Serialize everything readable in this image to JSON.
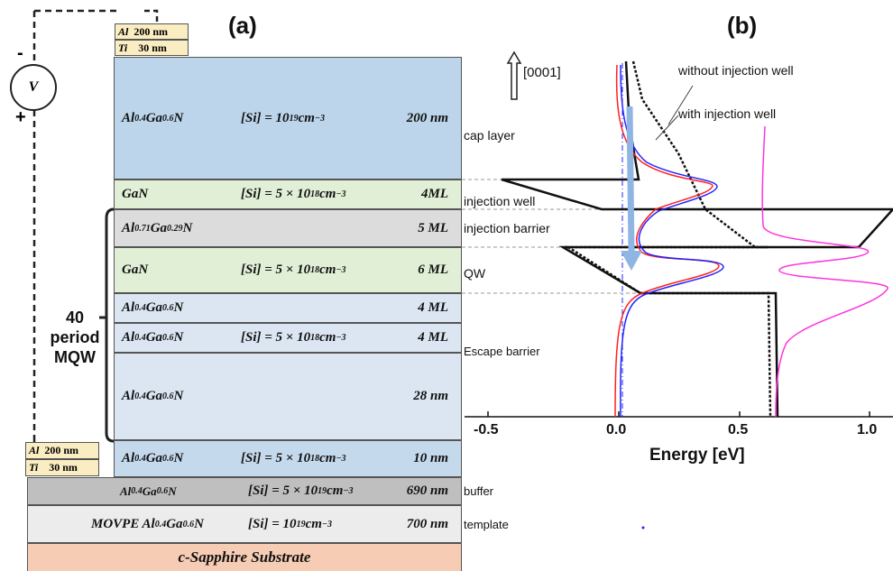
{
  "panels": {
    "a": "(a)",
    "b": "(b)"
  },
  "voltmeter": {
    "symbol": "V",
    "minus": "-",
    "plus": "+"
  },
  "top_contact": {
    "al": "Al",
    "al_thick": "200 nm",
    "ti": "Ti",
    "ti_thick": "30 nm"
  },
  "bottom_contact": {
    "al": "Al",
    "al_thick": "200 nm",
    "ti": "Ti",
    "ti_thick": "30 nm"
  },
  "mqw_label": {
    "count": "40",
    "line1": "period",
    "line2": "MQW"
  },
  "layers": {
    "cap": {
      "name_a": "Al",
      "sub1": "0.4",
      "name_b": "Ga",
      "sub2": "0.6",
      "name_c": "N",
      "conc_pre": "[Si] = 10",
      "conc_exp": "19",
      "conc_unit": " cm",
      "conc_unit_exp": "−3",
      "thickness": "200 nm"
    },
    "injwell": {
      "name": "GaN",
      "conc_pre": "[Si] = 5 × 10",
      "conc_exp": "18",
      "conc_unit": " cm",
      "conc_unit_exp": "−3",
      "thickness": "4ML"
    },
    "injbarrier": {
      "name_a": "Al",
      "sub1": "0.71",
      "name_b": "Ga",
      "sub2": "0.29",
      "name_c": "N",
      "thickness": "5 ML"
    },
    "qw": {
      "name": "GaN",
      "conc_pre": "[Si] = 5 × 10",
      "conc_exp": "18",
      "conc_unit": " cm",
      "conc_unit_exp": "−3",
      "thickness": "6 ML"
    },
    "esc1": {
      "name_a": "Al",
      "sub1": "0.4",
      "name_b": "Ga",
      "sub2": "0.6",
      "name_c": "N",
      "thickness": "4 ML"
    },
    "esc2": {
      "name_a": "Al",
      "sub1": "0.4",
      "name_b": "Ga",
      "sub2": "0.6",
      "name_c": "N",
      "conc_pre": "[Si] = 5 × 10",
      "conc_exp": "18",
      "conc_unit": " cm",
      "conc_unit_exp": "−3",
      "thickness": "4 ML"
    },
    "esc3": {
      "name_a": "Al",
      "sub1": "0.4",
      "name_b": "Ga",
      "sub2": "0.6",
      "name_c": "N",
      "thickness": "28 nm"
    },
    "contact": {
      "name_a": "Al",
      "sub1": "0.4",
      "name_b": "Ga",
      "sub2": "0.6",
      "name_c": "N",
      "conc_pre": "[Si] = 5 × 10",
      "conc_exp": "18",
      "conc_unit": " cm",
      "conc_unit_exp": "−3",
      "thickness": "10 nm"
    },
    "buffer": {
      "name_a": "Al",
      "sub1": "0.4",
      "name_b": "Ga",
      "sub2": "0.6",
      "name_c": "N",
      "conc_pre": "[Si] = 5 × 10",
      "conc_exp": "19",
      "conc_unit": " cm",
      "conc_unit_exp": "−3",
      "thickness": "690 nm"
    },
    "template": {
      "name_pre": "MOVPE Al",
      "sub1": "0.4",
      "name_b": "Ga",
      "sub2": "0.6",
      "name_c": "N",
      "conc_pre": "[Si] = 10",
      "conc_exp": "19",
      "conc_unit": " cm",
      "conc_unit_exp": "−3",
      "thickness": "700 nm"
    },
    "substrate": {
      "name": "c-Sapphire Substrate"
    }
  },
  "region_labels": {
    "cap": "cap layer",
    "injwell": "injection well",
    "injbarrier": "injection barrier",
    "qw": "QW",
    "escape": "Escape barrier",
    "buffer": "buffer",
    "template": "template"
  },
  "direction": "[0001]",
  "legend": {
    "without": "without injection well",
    "with": "with injection well"
  },
  "colors": {
    "cap": "#bcd5ea",
    "green": "#e0efd6",
    "barrier": "#dcdcdc",
    "escape": "#dbe6f2",
    "contact": "#c5d9ec",
    "buffer": "#bfbfbf",
    "template": "#ececec",
    "substrate": "#f6ccb4",
    "with": "#2323ff",
    "without": "#ff2020",
    "pink": "#ff33dd",
    "arrow": "#8fb6e3"
  },
  "chart_data": {
    "type": "line",
    "xlabel": "Energy [eV]",
    "xlim": [
      -0.6,
      1.1
    ],
    "xticks": [
      "-0.5",
      "0.0",
      "0.5",
      "1.0"
    ],
    "title": ""
  }
}
